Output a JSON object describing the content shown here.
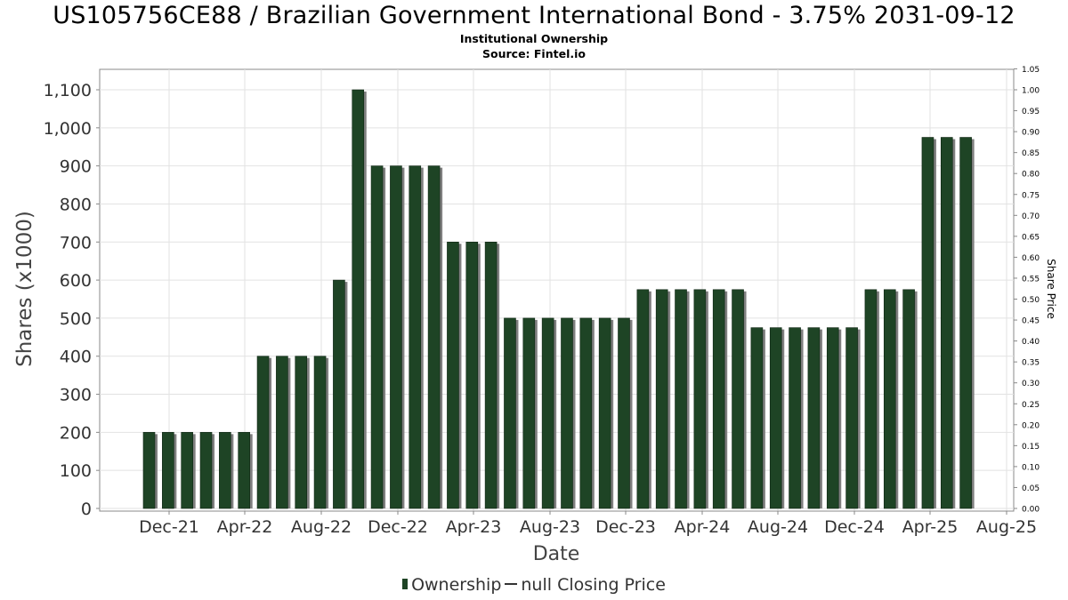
{
  "chart_data": {
    "type": "bar",
    "title": "US105756CE88 / Brazilian Government International Bond - 3.75% 2031-09-12",
    "subtitle": "Institutional Ownership",
    "source": "Source: Fintel.io",
    "xlabel": "Date",
    "ylabel": "Shares (x1000)",
    "y2label": "Share Price",
    "ylim": [
      0,
      1150
    ],
    "y2lim": [
      0,
      1.05
    ],
    "yticks": [
      0,
      100,
      200,
      300,
      400,
      500,
      600,
      700,
      800,
      900,
      1000,
      1100
    ],
    "ytick_labels": [
      "0",
      "100",
      "200",
      "300",
      "400",
      "500",
      "600",
      "700",
      "800",
      "900",
      "1,000",
      "1,100"
    ],
    "y2ticks": [
      0,
      0.05,
      0.1,
      0.15,
      0.2,
      0.25,
      0.3,
      0.35,
      0.4,
      0.45,
      0.5,
      0.55,
      0.6,
      0.65,
      0.7,
      0.75,
      0.8,
      0.85,
      0.9,
      0.95,
      1.0,
      1.05
    ],
    "y2tick_labels": [
      "0.00",
      "0.05",
      "0.10",
      "0.15",
      "0.20",
      "0.25",
      "0.30",
      "0.35",
      "0.40",
      "0.45",
      "0.50",
      "0.55",
      "0.60",
      "0.65",
      "0.70",
      "0.75",
      "0.80",
      "0.85",
      "0.90",
      "0.95",
      "1.00",
      "1.05"
    ],
    "xticks": [
      "Dec-21",
      "Apr-22",
      "Aug-22",
      "Dec-22",
      "Apr-23",
      "Aug-23",
      "Dec-23",
      "Apr-24",
      "Aug-24",
      "Dec-24",
      "Apr-25",
      "Aug-25"
    ],
    "grid": true,
    "legend_position": "bottom",
    "series": [
      {
        "name": "Ownership",
        "color": "#1e4425",
        "values": [
          200,
          200,
          200,
          200,
          200,
          200,
          400,
          400,
          400,
          400,
          600,
          1100,
          900,
          900,
          900,
          900,
          700,
          700,
          700,
          500,
          500,
          500,
          500,
          500,
          500,
          500,
          575,
          575,
          575,
          575,
          575,
          575,
          475,
          475,
          475,
          475,
          475,
          475,
          575,
          575,
          575,
          975,
          975,
          975
        ]
      },
      {
        "name": "null Closing Price",
        "color": "#333333",
        "values": []
      }
    ]
  }
}
